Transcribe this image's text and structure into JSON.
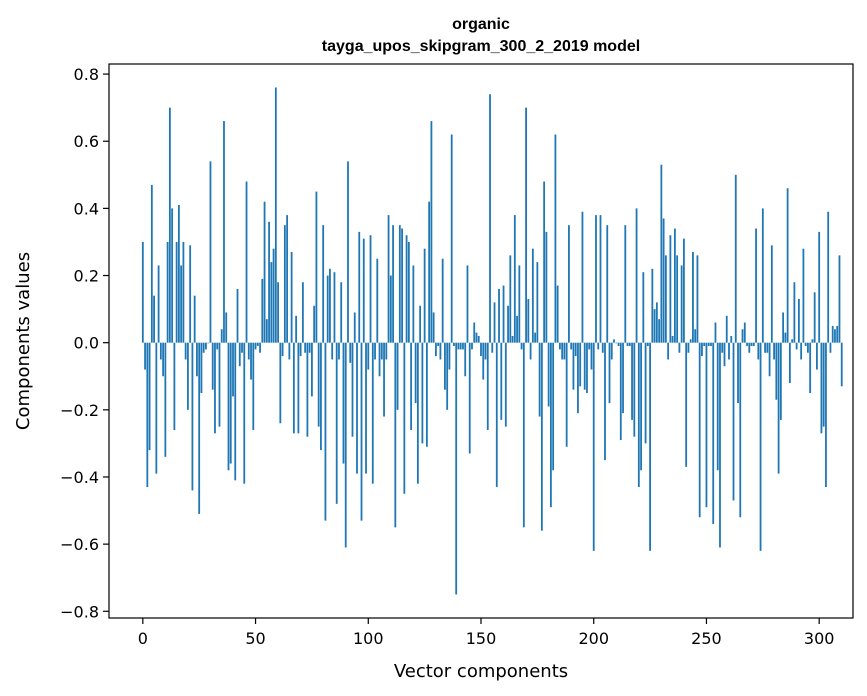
{
  "chart_data": {
    "type": "bar",
    "title": "organic",
    "subtitle": "tayga_upos_skipgram_300_2_2019 model",
    "xlabel": "Vector components",
    "ylabel": "Components values",
    "xlim": [
      -15,
      315
    ],
    "ylim": [
      -0.82,
      0.83
    ],
    "xticks": [
      0,
      50,
      100,
      150,
      200,
      250,
      300
    ],
    "yticks": [
      -0.8,
      -0.6,
      -0.4,
      -0.2,
      0.0,
      0.2,
      0.4,
      0.6,
      0.8
    ],
    "ytick_labels": [
      "−0.8",
      "−0.6",
      "−0.4",
      "−0.2",
      "0.0",
      "0.2",
      "0.4",
      "0.6",
      "0.8"
    ],
    "grid": false,
    "bar_color": "#1f77b4",
    "values": [
      0.3,
      -0.08,
      -0.43,
      -0.32,
      0.47,
      0.14,
      -0.39,
      0.23,
      -0.05,
      -0.1,
      -0.34,
      0.3,
      0.7,
      0.4,
      -0.26,
      0.3,
      0.41,
      0.23,
      0.3,
      -0.05,
      -0.2,
      0.29,
      -0.44,
      0.14,
      -0.1,
      -0.51,
      -0.15,
      -0.03,
      -0.02,
      0.0,
      0.54,
      -0.14,
      -0.27,
      -0.02,
      -0.25,
      0.04,
      0.66,
      0.09,
      -0.38,
      -0.36,
      -0.16,
      -0.41,
      0.16,
      -0.07,
      -0.03,
      -0.42,
      0.48,
      -0.05,
      -0.11,
      -0.26,
      -0.02,
      -0.01,
      -0.03,
      0.19,
      0.42,
      0.07,
      0.36,
      0.24,
      0.28,
      0.76,
      0.18,
      -0.24,
      -0.04,
      0.35,
      0.38,
      -0.05,
      0.27,
      -0.27,
      0.08,
      -0.27,
      -0.04,
      0.18,
      -0.03,
      -0.28,
      -0.03,
      -0.16,
      0.11,
      0.45,
      -0.25,
      -0.32,
      0.35,
      -0.53,
      0.2,
      0.22,
      -0.05,
      0.21,
      -0.48,
      -0.05,
      0.18,
      -0.36,
      -0.61,
      0.54,
      -0.06,
      -0.28,
      0.09,
      -0.39,
      0.33,
      -0.53,
      0.31,
      -0.39,
      -0.08,
      0.32,
      -0.42,
      -0.05,
      0.25,
      -0.1,
      -0.05,
      -0.22,
      -0.05,
      0.38,
      0.2,
      0.35,
      -0.55,
      -0.2,
      0.35,
      0.34,
      -0.45,
      0.32,
      0.3,
      -0.26,
      0.23,
      -0.18,
      -0.42,
      0.11,
      -0.3,
      0.28,
      -0.31,
      0.42,
      0.66,
      0.09,
      -0.04,
      -0.01,
      -0.05,
      0.25,
      -0.14,
      -0.2,
      -0.08,
      0.62,
      -0.01,
      -0.75,
      -0.02,
      -0.02,
      -0.02,
      -0.1,
      0.23,
      -0.33,
      -0.02,
      0.06,
      0.03,
      0.02,
      -0.04,
      -0.11,
      -0.05,
      -0.26,
      0.74,
      -0.03,
      0.12,
      -0.43,
      0.16,
      -0.23,
      0.17,
      -0.25,
      0.11,
      0.26,
      0.02,
      0.38,
      0.08,
      0.23,
      -0.02,
      -0.55,
      0.7,
      0.13,
      -0.05,
      0.28,
      0.03,
      0.24,
      -0.22,
      -0.56,
      0.48,
      0.33,
      -0.19,
      -0.49,
      -0.38,
      0.62,
      0.17,
      -0.02,
      -0.05,
      -0.05,
      -0.31,
      0.35,
      -0.02,
      -0.14,
      -0.04,
      -0.21,
      -0.13,
      0.39,
      -0.14,
      -0.15,
      -0.02,
      -0.08,
      -0.62,
      0.38,
      -0.02,
      0.38,
      -0.03,
      -0.35,
      0.35,
      -0.18,
      -0.05,
      0.01,
      0.0,
      -0.01,
      -0.29,
      -0.21,
      0.35,
      -0.01,
      -0.01,
      -0.23,
      -0.28,
      0.4,
      -0.43,
      -0.38,
      0.21,
      -0.3,
      -0.01,
      -0.62,
      0.22,
      0.1,
      0.12,
      0.07,
      0.53,
      0.37,
      0.26,
      -0.05,
      0.32,
      0.02,
      0.34,
      0.26,
      -0.03,
      0.23,
      0.31,
      -0.37,
      -0.03,
      0.01,
      0.27,
      0.04,
      0.26,
      -0.52,
      -0.04,
      -0.01,
      -0.49,
      -0.01,
      -0.01,
      -0.54,
      0.06,
      -0.38,
      -0.61,
      -0.03,
      -0.07,
      0.08,
      -0.05,
      0.02,
      -0.47,
      0.5,
      -0.18,
      -0.52,
      0.04,
      0.06,
      -0.01,
      -0.03,
      -0.01,
      -0.01,
      0.34,
      -0.05,
      -0.62,
      0.4,
      -0.03,
      -0.03,
      -0.1,
      0.29,
      -0.05,
      -0.17,
      -0.39,
      -0.23,
      0.09,
      0.03,
      0.46,
      -0.12,
      0.01,
      0.18,
      -0.02,
      0.13,
      -0.05,
      0.28,
      -0.01,
      -0.03,
      -0.15,
      0.01,
      0.15,
      -0.08,
      0.33,
      -0.27,
      -0.25,
      -0.43,
      0.39,
      -0.03,
      0.05,
      0.04,
      0.05,
      0.26,
      -0.13
    ]
  }
}
